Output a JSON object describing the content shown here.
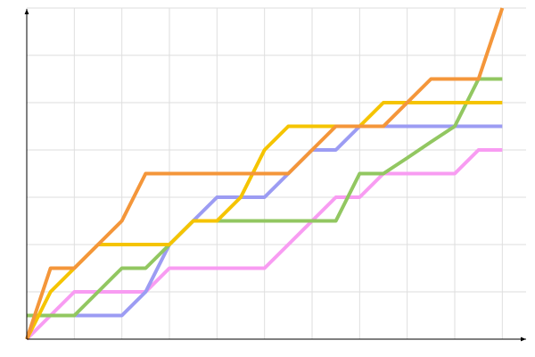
{
  "chart_data": {
    "type": "line",
    "x": [
      0,
      0.5,
      1,
      1.5,
      2,
      2.5,
      3,
      3.5,
      4,
      4.5,
      5,
      5.5,
      6,
      6.5,
      7,
      7.5,
      8,
      8.5,
      9,
      9.5,
      10
    ],
    "series": [
      {
        "color": "#f89cf2",
        "values": [
          0,
          0.5,
          1,
          1,
          1,
          1,
          1.5,
          1.5,
          1.5,
          1.5,
          1.5,
          2,
          2.5,
          3,
          3,
          3.5,
          3.5,
          3.5,
          3.5,
          4,
          4
        ]
      },
      {
        "color": "#9c9cf3",
        "values": [
          0.5,
          0.5,
          0.5,
          0.5,
          0.5,
          1,
          2,
          2.5,
          3,
          3,
          3,
          3.5,
          4,
          4,
          4.5,
          4.5,
          4.5,
          4.5,
          4.5,
          4.5,
          4.5
        ]
      },
      {
        "color": "#92c761",
        "values": [
          0.5,
          0.5,
          0.5,
          1,
          1.5,
          1.5,
          2,
          2.5,
          2.5,
          2.5,
          2.5,
          2.5,
          2.5,
          2.5,
          3.5,
          3.5,
          3.83,
          4.17,
          4.5,
          5.5,
          5.5
        ]
      },
      {
        "color": "#f5c400",
        "values": [
          0,
          1,
          1.5,
          2,
          2,
          2,
          2,
          2.5,
          2.5,
          3,
          4,
          4.5,
          4.5,
          4.5,
          4.5,
          5,
          5,
          5,
          5,
          5,
          5
        ]
      },
      {
        "color": "#f4963a",
        "values": [
          0,
          1.5,
          1.5,
          2,
          2.5,
          3.5,
          3.5,
          3.5,
          3.5,
          3.5,
          3.5,
          3.5,
          4,
          4.5,
          4.5,
          4.5,
          5,
          5.5,
          5.5,
          5.5,
          7
        ]
      }
    ],
    "xlim": [
      0,
      10.5
    ],
    "ylim": [
      0,
      7
    ],
    "xticks": [
      0,
      1,
      2,
      3,
      4,
      5,
      6,
      7,
      8,
      9,
      10
    ],
    "yticks": [
      0,
      1,
      2,
      3,
      4,
      5,
      6,
      7
    ],
    "grid": true
  }
}
